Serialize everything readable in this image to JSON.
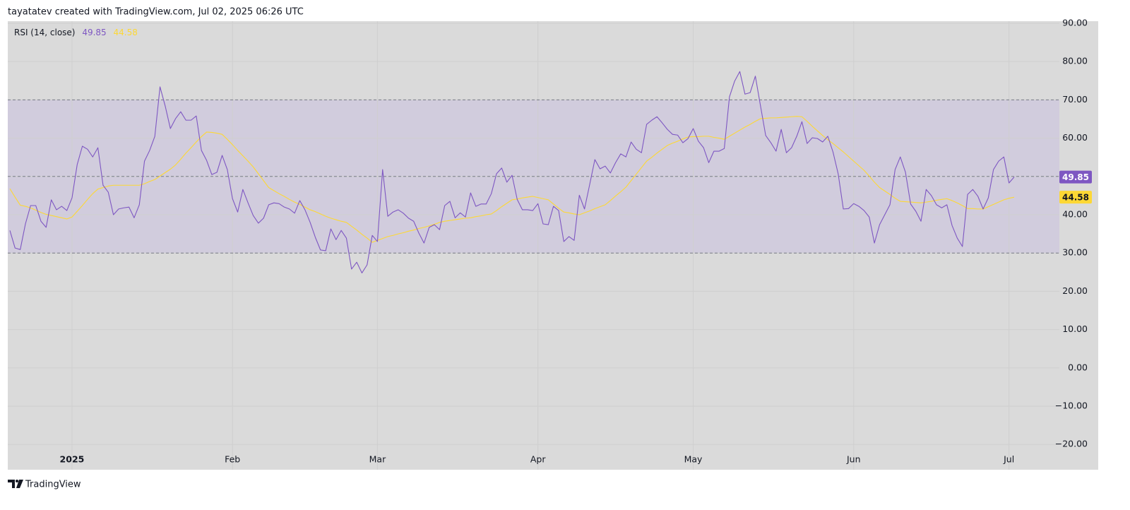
{
  "header": {
    "text": "tayatatev created with TradingView.com, Jul 02, 2025 06:26 UTC"
  },
  "footer": {
    "brand": "TradingView"
  },
  "chart_data": {
    "type": "line",
    "indicator_label": "RSI (14, close)",
    "categories": [
      null,
      null,
      null,
      null,
      null,
      null,
      null,
      null,
      null,
      null,
      null,
      null,
      "2025",
      null,
      null,
      null,
      null,
      null,
      null,
      null,
      null,
      null,
      null,
      null,
      null,
      null,
      null,
      null,
      null,
      null,
      null,
      null,
      null,
      null,
      null,
      null,
      null,
      null,
      null,
      null,
      null,
      null,
      null,
      "Feb",
      null,
      null,
      null,
      null,
      null,
      null,
      null,
      null,
      null,
      null,
      null,
      null,
      null,
      null,
      null,
      null,
      null,
      null,
      null,
      null,
      null,
      null,
      null,
      null,
      null,
      null,
      null,
      "Mar",
      null,
      null,
      null,
      null,
      null,
      null,
      null,
      null,
      null,
      null,
      null,
      null,
      null,
      null,
      null,
      null,
      null,
      null,
      null,
      null,
      null,
      null,
      null,
      null,
      null,
      null,
      null,
      null,
      null,
      null,
      "Apr",
      null,
      null,
      null,
      null,
      null,
      null,
      null,
      null,
      null,
      null,
      null,
      null,
      null,
      null,
      null,
      null,
      null,
      null,
      null,
      null,
      null,
      null,
      null,
      null,
      null,
      null,
      null,
      null,
      null,
      "May",
      null,
      null,
      null,
      null,
      null,
      null,
      null,
      null,
      null,
      null,
      null,
      null,
      null,
      null,
      null,
      null,
      null,
      null,
      null,
      null,
      null,
      null,
      null,
      null,
      null,
      null,
      null,
      null,
      null,
      null,
      "Jun",
      null,
      null,
      null,
      null,
      null,
      null,
      null,
      null,
      null,
      null,
      null,
      null,
      null,
      null,
      null,
      null,
      null,
      null,
      null,
      null,
      null,
      null,
      null,
      null,
      null,
      null,
      null,
      null,
      null,
      "Jul",
      null
    ],
    "series": [
      {
        "color": "#7e57c2",
        "values": [
          35.9,
          31.3,
          30.9,
          37.6,
          42.4,
          42.4,
          38.3,
          36.7,
          43.9,
          41.3,
          42.2,
          41.1,
          44.4,
          53.1,
          57.9,
          57.1,
          55.1,
          57.5,
          47.7,
          45.9,
          40.0,
          41.5,
          41.8,
          42.0,
          39.2,
          42.6,
          54.0,
          56.8,
          60.5,
          73.4,
          68.4,
          62.5,
          65.1,
          66.9,
          64.7,
          64.7,
          65.8,
          56.8,
          54.2,
          50.5,
          51.1,
          55.5,
          51.8,
          44.2,
          40.7,
          46.6,
          43.1,
          39.8,
          37.8,
          39.1,
          42.6,
          43.1,
          42.9,
          42.0,
          41.5,
          40.4,
          43.7,
          41.3,
          38.0,
          34.1,
          30.8,
          30.6,
          36.3,
          33.5,
          35.9,
          33.9,
          25.8,
          27.6,
          24.8,
          26.9,
          34.6,
          33.0,
          51.8,
          39.6,
          40.7,
          41.3,
          40.4,
          39.1,
          38.3,
          35.2,
          32.6,
          36.7,
          37.4,
          36.1,
          42.4,
          43.5,
          39.2,
          40.5,
          39.4,
          45.7,
          42.2,
          42.8,
          42.8,
          45.5,
          50.7,
          52.2,
          48.5,
          50.3,
          44.0,
          41.3,
          41.3,
          41.1,
          42.9,
          37.6,
          37.4,
          42.2,
          41.1,
          33.0,
          34.3,
          33.3,
          45.1,
          41.5,
          47.9,
          54.4,
          52.0,
          52.7,
          50.9,
          53.6,
          55.9,
          55.1,
          59.0,
          57.1,
          56.2,
          63.6,
          64.7,
          65.6,
          64.0,
          62.3,
          61.0,
          60.8,
          58.8,
          59.9,
          62.5,
          59.2,
          57.5,
          53.6,
          56.6,
          56.6,
          57.3,
          70.8,
          74.9,
          77.4,
          71.5,
          71.9,
          76.2,
          68.4,
          60.7,
          58.8,
          56.6,
          62.3,
          56.2,
          57.5,
          60.5,
          64.3,
          58.6,
          60.1,
          59.9,
          59.0,
          60.5,
          56.4,
          50.7,
          41.5,
          41.6,
          42.9,
          42.2,
          41.1,
          39.4,
          32.6,
          37.4,
          40.0,
          42.6,
          51.8,
          55.1,
          51.1,
          42.8,
          40.9,
          38.3,
          46.6,
          45.0,
          42.6,
          41.8,
          42.6,
          37.2,
          33.9,
          31.7,
          45.3,
          46.6,
          44.8,
          41.5,
          44.4,
          51.8,
          54.0,
          55.1,
          48.3,
          49.85
        ]
      },
      {
        "color": "#fdd835",
        "values": [
          46.8,
          44.6,
          42.5,
          42.2,
          41.8,
          41.2,
          40.6,
          40.1,
          39.8,
          39.5,
          39.2,
          38.9,
          39.4,
          40.9,
          42.4,
          44.0,
          45.5,
          46.7,
          47.1,
          47.5,
          47.7,
          47.7,
          47.7,
          47.7,
          47.7,
          47.7,
          48.1,
          48.7,
          49.2,
          50.1,
          51.0,
          51.9,
          53.0,
          54.5,
          56.1,
          57.5,
          59.0,
          60.4,
          61.6,
          61.5,
          61.3,
          61.0,
          59.7,
          58.3,
          56.8,
          55.4,
          54.0,
          52.5,
          50.7,
          48.9,
          47.1,
          46.3,
          45.5,
          44.8,
          44.0,
          43.3,
          42.7,
          42.0,
          41.3,
          40.8,
          40.2,
          39.6,
          39.1,
          38.7,
          38.3,
          38.0,
          37.0,
          36.0,
          34.9,
          33.9,
          32.8,
          33.3,
          33.8,
          34.3,
          34.6,
          35.0,
          35.3,
          35.7,
          36.0,
          36.4,
          36.7,
          37.1,
          37.5,
          38.0,
          38.3,
          38.5,
          38.7,
          38.9,
          39.1,
          39.2,
          39.5,
          39.7,
          40.0,
          40.2,
          41.1,
          42.1,
          43.0,
          43.9,
          44.1,
          44.4,
          44.6,
          44.8,
          44.5,
          44.2,
          43.9,
          42.8,
          41.7,
          40.7,
          40.5,
          40.2,
          40.0,
          40.5,
          41.0,
          41.6,
          42.1,
          42.6,
          43.7,
          44.9,
          46.0,
          47.2,
          48.9,
          50.6,
          52.3,
          54.0,
          55.0,
          56.1,
          57.1,
          58.1,
          58.7,
          59.2,
          59.8,
          60.3,
          60.4,
          60.4,
          60.5,
          60.5,
          60.2,
          60.0,
          59.7,
          60.5,
          61.3,
          62.1,
          62.9,
          63.6,
          64.4,
          65.1,
          65.2,
          65.3,
          65.3,
          65.4,
          65.5,
          65.6,
          65.7,
          65.6,
          64.4,
          63.1,
          61.9,
          60.7,
          59.6,
          58.6,
          57.5,
          56.4,
          55.2,
          54.0,
          52.8,
          51.6,
          50.1,
          48.5,
          47.1,
          46.2,
          45.3,
          44.3,
          43.5,
          43.4,
          43.3,
          43.2,
          43.1,
          43.3,
          43.5,
          43.8,
          44.0,
          44.2,
          43.7,
          43.1,
          42.4,
          41.6,
          41.6,
          41.5,
          41.5,
          42.1,
          42.7,
          43.3,
          43.9,
          44.3,
          44.58
        ]
      }
    ],
    "levels": [
      70,
      50,
      30
    ],
    "band_color": "#d1ccdd",
    "ylim": [
      -26.6,
      90.55
    ],
    "yticks": [
      {
        "value": 90,
        "label": "90.00"
      },
      {
        "value": 80,
        "label": "80.00"
      },
      {
        "value": 70,
        "label": "70.00"
      },
      {
        "value": 60,
        "label": "60.00"
      },
      {
        "value": 50,
        "label": "50.00"
      },
      {
        "value": 40,
        "label": "40.00"
      },
      {
        "value": 30,
        "label": "30.00"
      },
      {
        "value": 20,
        "label": "20.00"
      },
      {
        "value": 10,
        "label": "10.00"
      },
      {
        "value": 0,
        "label": "0.00"
      },
      {
        "value": -10,
        "label": "−10.00"
      },
      {
        "value": -20,
        "label": "−20.00"
      }
    ],
    "grid": true
  }
}
